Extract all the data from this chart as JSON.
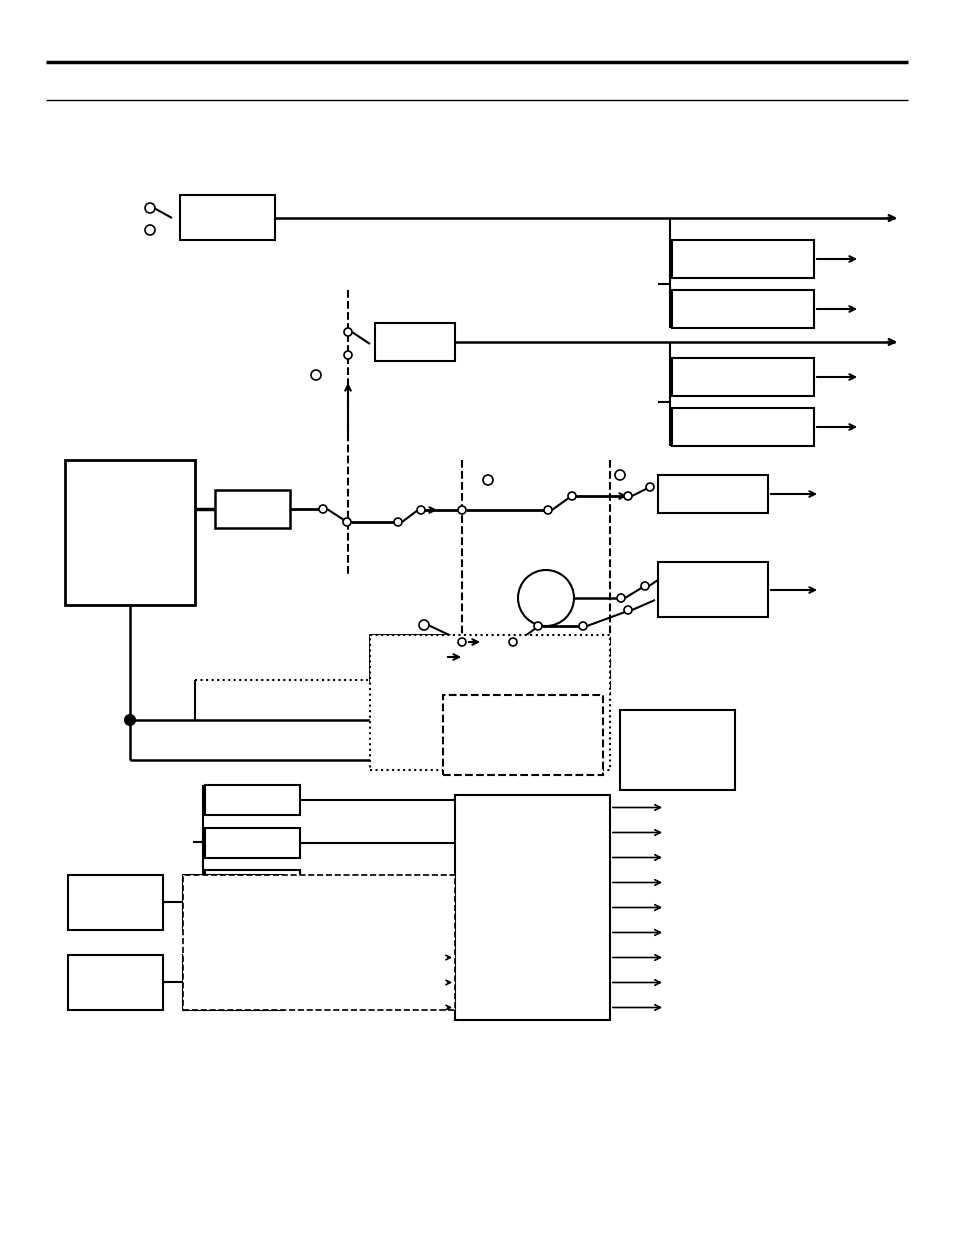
{
  "bg_color": "#ffffff",
  "line_color": "#000000",
  "figsize": [
    9.54,
    12.35
  ],
  "dpi": 100
}
